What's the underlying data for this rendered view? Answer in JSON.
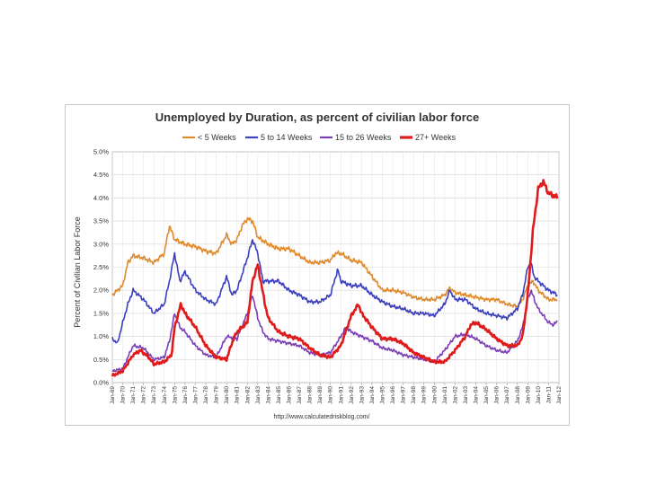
{
  "chart_data": {
    "type": "line",
    "title": "Unemployed by Duration, as percent of civilian labor force",
    "ylabel": "Percent of Civilian Labor Force",
    "xlabel": "",
    "source": "http://www.calculatedriskblog.com/",
    "ylim": [
      0,
      5
    ],
    "xlim": [
      1969,
      2012
    ],
    "yticks": [
      "0.0%",
      "0.5%",
      "1.0%",
      "1.5%",
      "2.0%",
      "2.5%",
      "3.0%",
      "3.5%",
      "4.0%",
      "4.5%",
      "5.0%"
    ],
    "xticks": [
      "Jan-69",
      "Jan-70",
      "Jan-71",
      "Jan-72",
      "Jan-73",
      "Jan-74",
      "Jan-75",
      "Jan-76",
      "Jan-77",
      "Jan-78",
      "Jan-79",
      "Jan-80",
      "Jan-81",
      "Jan-82",
      "Jan-83",
      "Jan-84",
      "Jan-85",
      "Jan-86",
      "Jan-87",
      "Jan-88",
      "Jan-89",
      "Jan-90",
      "Jan-91",
      "Jan-92",
      "Jan-93",
      "Jan-94",
      "Jan-95",
      "Jan-96",
      "Jan-97",
      "Jan-98",
      "Jan-99",
      "Jan-00",
      "Jan-01",
      "Jan-02",
      "Jan-03",
      "Jan-04",
      "Jan-05",
      "Jan-06",
      "Jan-07",
      "Jan-08",
      "Jan-09",
      "Jan-10",
      "Jan-11",
      "Jan-12"
    ],
    "grid": true,
    "legend_position": "top",
    "series": [
      {
        "name": "< 5 Weeks",
        "color": "#e08a2c",
        "width": 1.6,
        "x": [
          1969,
          1970,
          1970.5,
          1971,
          1972,
          1973,
          1974,
          1974.5,
          1975,
          1976,
          1977,
          1978,
          1979,
          1980,
          1980.5,
          1981,
          1981.5,
          1982,
          1982.5,
          1983,
          1984,
          1985,
          1986,
          1987,
          1988,
          1989,
          1990,
          1990.5,
          1991,
          1992,
          1993,
          1994,
          1995,
          1996,
          1997,
          1998,
          1999,
          2000,
          2001,
          2001.5,
          2002,
          2003,
          2004,
          2005,
          2006,
          2007,
          2008,
          2008.5,
          2009,
          2009.5,
          2010,
          2011,
          2011.9
        ],
        "y": [
          1.9,
          2.1,
          2.6,
          2.75,
          2.7,
          2.6,
          2.8,
          3.4,
          3.1,
          3.0,
          2.95,
          2.85,
          2.8,
          3.2,
          3.0,
          3.1,
          3.4,
          3.55,
          3.5,
          3.15,
          3.0,
          2.9,
          2.9,
          2.75,
          2.6,
          2.6,
          2.65,
          2.8,
          2.8,
          2.65,
          2.6,
          2.3,
          2.0,
          2.0,
          1.95,
          1.85,
          1.8,
          1.8,
          1.9,
          2.05,
          1.95,
          1.9,
          1.85,
          1.8,
          1.8,
          1.7,
          1.65,
          1.8,
          2.1,
          2.2,
          2.0,
          1.8,
          1.8
        ]
      },
      {
        "name": "5 to 14 Weeks",
        "color": "#3b3fbf",
        "width": 1.6,
        "x": [
          1969,
          1969.5,
          1970,
          1970.5,
          1971,
          1972,
          1973,
          1974,
          1974.5,
          1975,
          1975.5,
          1976,
          1977,
          1978,
          1979,
          1980,
          1980.5,
          1981,
          1982,
          1982.5,
          1983,
          1983.5,
          1984,
          1985,
          1986,
          1987,
          1988,
          1989,
          1990,
          1990.7,
          1991,
          1992,
          1993,
          1994,
          1995,
          1996,
          1997,
          1998,
          1999,
          2000,
          2001,
          2001.5,
          2002,
          2003,
          2004,
          2005,
          2006,
          2007,
          2008,
          2008.5,
          2009,
          2009.3,
          2009.6,
          2010,
          2011,
          2011.9
        ],
        "y": [
          0.95,
          0.85,
          1.3,
          1.7,
          2.0,
          1.8,
          1.5,
          1.7,
          2.2,
          2.8,
          2.2,
          2.4,
          2.0,
          1.8,
          1.7,
          2.3,
          1.9,
          2.0,
          2.7,
          3.1,
          2.8,
          2.2,
          2.2,
          2.2,
          2.0,
          1.9,
          1.75,
          1.75,
          1.9,
          2.45,
          2.2,
          2.1,
          2.1,
          1.9,
          1.75,
          1.65,
          1.6,
          1.5,
          1.5,
          1.45,
          1.7,
          2.0,
          1.8,
          1.8,
          1.6,
          1.5,
          1.45,
          1.4,
          1.6,
          1.9,
          2.5,
          2.6,
          2.3,
          2.2,
          2.0,
          1.9
        ]
      },
      {
        "name": "15 to 26 Weeks",
        "color": "#7a3db8",
        "width": 1.6,
        "x": [
          1969,
          1970,
          1970.5,
          1971,
          1972,
          1973,
          1974,
          1974.5,
          1975,
          1975.5,
          1976,
          1977,
          1978,
          1979,
          1980,
          1981,
          1982,
          1982.5,
          1983,
          1983.5,
          1984,
          1985,
          1986,
          1987,
          1988,
          1989,
          1990,
          1991,
          1991.5,
          1992,
          1993,
          1994,
          1995,
          1996,
          1997,
          1998,
          1999,
          2000,
          2001,
          2002,
          2003,
          2004,
          2005,
          2006,
          2007,
          2008,
          2008.5,
          2009,
          2009.3,
          2009.8,
          2010,
          2011,
          2011.5,
          2011.9
        ],
        "y": [
          0.25,
          0.3,
          0.55,
          0.8,
          0.75,
          0.5,
          0.55,
          0.9,
          1.5,
          1.2,
          1.1,
          0.8,
          0.6,
          0.55,
          1.0,
          0.95,
          1.5,
          1.9,
          1.4,
          1.1,
          0.95,
          0.9,
          0.85,
          0.8,
          0.65,
          0.6,
          0.65,
          1.0,
          1.2,
          1.1,
          1.0,
          0.9,
          0.75,
          0.7,
          0.6,
          0.55,
          0.5,
          0.45,
          0.7,
          1.0,
          1.05,
          0.95,
          0.8,
          0.7,
          0.65,
          0.9,
          1.2,
          1.8,
          2.0,
          1.7,
          1.6,
          1.3,
          1.25,
          1.35
        ]
      },
      {
        "name": "27+ Weeks",
        "color": "#e01b1b",
        "width": 2.6,
        "x": [
          1969,
          1970,
          1971,
          1971.7,
          1972.5,
          1973,
          1974,
          1974.7,
          1975,
          1975.6,
          1976,
          1977,
          1978,
          1979,
          1980,
          1980.5,
          1981,
          1982,
          1982.5,
          1983,
          1983.7,
          1984,
          1985,
          1986,
          1987,
          1988,
          1989,
          1990,
          1991,
          1992,
          1992.7,
          1993,
          1994,
          1995,
          1996,
          1997,
          1998,
          1999,
          2000,
          2001,
          2002,
          2003,
          2003.5,
          2004,
          2005,
          2006,
          2007,
          2008,
          2008.5,
          2009,
          2009.5,
          2010,
          2010.5,
          2011,
          2011.9
        ],
        "y": [
          0.15,
          0.25,
          0.6,
          0.7,
          0.55,
          0.4,
          0.45,
          0.6,
          1.2,
          1.7,
          1.5,
          1.2,
          0.8,
          0.55,
          0.5,
          0.85,
          1.1,
          1.3,
          2.2,
          2.55,
          1.7,
          1.4,
          1.1,
          1.0,
          0.95,
          0.75,
          0.6,
          0.55,
          0.8,
          1.45,
          1.7,
          1.5,
          1.2,
          0.95,
          0.95,
          0.85,
          0.65,
          0.55,
          0.45,
          0.45,
          0.7,
          1.0,
          1.25,
          1.3,
          1.15,
          0.95,
          0.8,
          0.8,
          1.0,
          1.9,
          3.3,
          4.2,
          4.35,
          4.1,
          4.0
        ]
      }
    ]
  }
}
